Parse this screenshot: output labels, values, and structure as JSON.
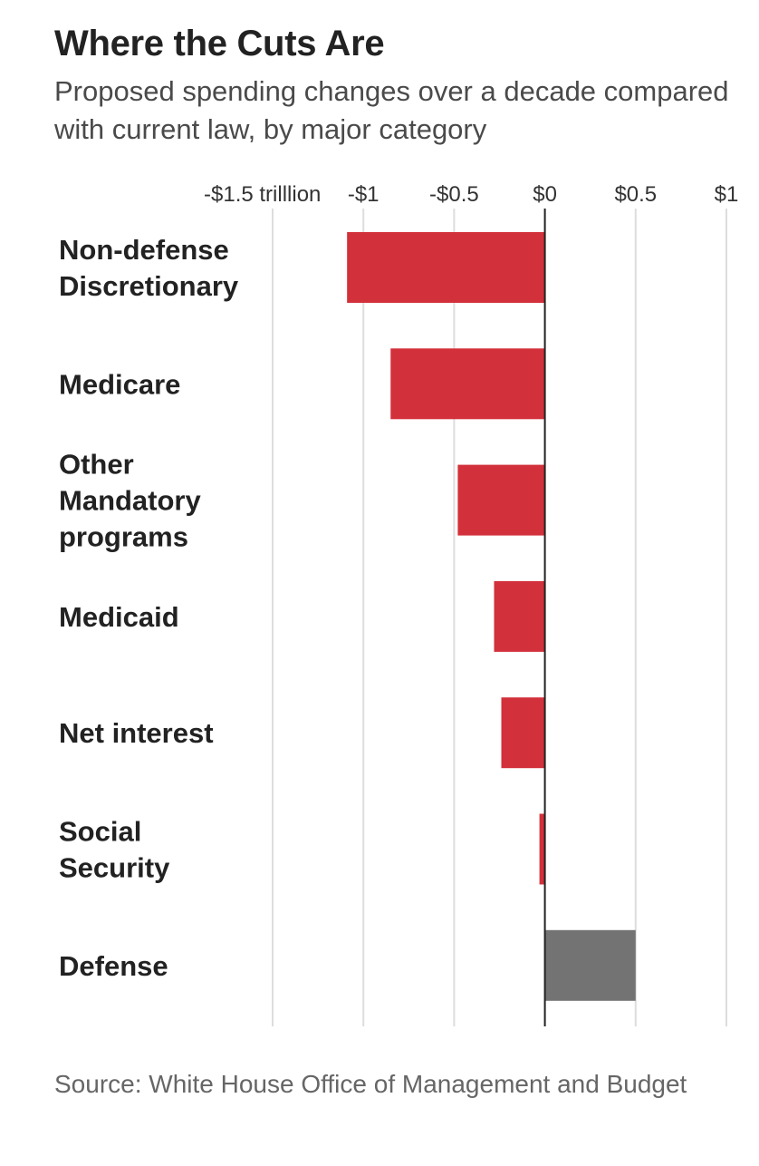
{
  "chart_data": {
    "type": "bar",
    "orientation": "horizontal",
    "title": "Where the Cuts Are",
    "subtitle": "Proposed spending changes over a decade compared with current law, by major category",
    "source": "Source: White House Office of Management and Budget",
    "xlabel": "",
    "ylabel": "",
    "xlim": [
      -1.5,
      1.0
    ],
    "grid": true,
    "ticks": [
      {
        "value": -1.5,
        "label": "-$1.5 trilllion"
      },
      {
        "value": -1.0,
        "label": "-$1"
      },
      {
        "value": -0.5,
        "label": "-$0.5"
      },
      {
        "value": 0,
        "label": "$0"
      },
      {
        "value": 0.5,
        "label": "$0.5"
      },
      {
        "value": 1.0,
        "label": "$1"
      }
    ],
    "categories": [
      [
        "Non-defense",
        "Discretionary"
      ],
      [
        "Medicare"
      ],
      [
        "Other",
        "Mandatory",
        "programs"
      ],
      [
        "Medicaid"
      ],
      [
        "Net interest"
      ],
      [
        "Social",
        "Security"
      ],
      [
        "Defense"
      ]
    ],
    "values": [
      -1.09,
      -0.85,
      -0.48,
      -0.28,
      -0.24,
      -0.03,
      0.5
    ],
    "colors": {
      "negative": "#d2303a",
      "positive": "#737373",
      "grid": "#dddddd",
      "zero_line": "#222222"
    }
  }
}
